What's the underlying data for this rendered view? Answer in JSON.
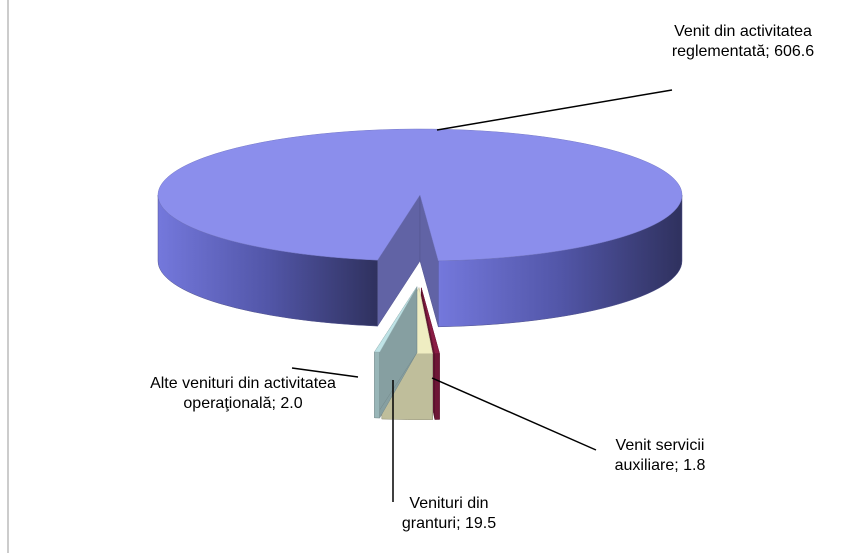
{
  "chart_data": {
    "type": "pie3d",
    "categories": [
      "Venit din activitatea reglementată",
      "Venit servicii auxiliare",
      "Venituri din granturi",
      "Alte venituri din activitatea operaţională"
    ],
    "values": [
      606.6,
      1.8,
      19.5,
      2.0
    ],
    "value_labels": [
      "606.6",
      "1.8",
      "19.5",
      "2.0"
    ],
    "label_separator": "; ",
    "colors": [
      "#8b8eec",
      "#8a1c44",
      "#efedc2",
      "#bfe3e6"
    ]
  }
}
